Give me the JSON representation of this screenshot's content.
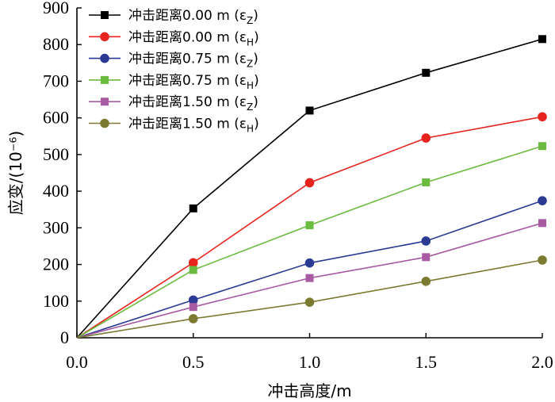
{
  "chart_data": {
    "type": "line",
    "title": "",
    "xlabel": "冲击高度/m",
    "ylabel": "应变/(10⁻⁶)",
    "xlim": [
      0.0,
      2.0
    ],
    "ylim": [
      0,
      900
    ],
    "xticks": [
      0.0,
      0.5,
      1.0,
      1.5,
      2.0
    ],
    "xtick_labels": [
      "0.0",
      "0.5",
      "1.0",
      "1.5",
      "2.0"
    ],
    "yticks": [
      0,
      100,
      200,
      300,
      400,
      500,
      600,
      700,
      800,
      900
    ],
    "ytick_labels": [
      "0",
      "100",
      "200",
      "300",
      "400",
      "500",
      "600",
      "700",
      "800",
      "900"
    ],
    "legend_position": "top-left",
    "x": [
      0.0,
      0.5,
      1.0,
      1.5,
      2.0
    ],
    "series": [
      {
        "name": "冲击距离0.00 m (εZ)",
        "label_main": "冲击距离0.00 m (ε",
        "label_sub": "Z",
        "label_end": ")",
        "color": "#000000",
        "marker": "square",
        "values": [
          0,
          353,
          620,
          723,
          815
        ]
      },
      {
        "name": "冲击距离0.00 m (εH)",
        "label_main": "冲击距离0.00 m (ε",
        "label_sub": "H",
        "label_end": ")",
        "color": "#e8221d",
        "marker": "circle",
        "values": [
          0,
          205,
          423,
          545,
          603
        ]
      },
      {
        "name": "冲击距离0.75 m (εZ)",
        "label_main": "冲击距离0.75 m (ε",
        "label_sub": "Z",
        "label_end": ")",
        "color": "#2b3b93",
        "marker": "circle",
        "values": [
          0,
          103,
          204,
          264,
          374
        ]
      },
      {
        "name": "冲击距离0.75 m (εH)",
        "label_main": "冲击距离0.75 m (ε",
        "label_sub": "H",
        "label_end": ")",
        "color": "#6bbb3e",
        "marker": "square",
        "values": [
          0,
          185,
          307,
          424,
          523
        ]
      },
      {
        "name": "冲击距离1.50 m (εZ)",
        "label_main": "冲击距离1.50 m (ε",
        "label_sub": "Z",
        "label_end": ")",
        "color": "#a85aa3",
        "marker": "square",
        "values": [
          0,
          84,
          163,
          220,
          313
        ]
      },
      {
        "name": "冲击距离1.50 m (εH)",
        "label_main": "冲击距离1.50 m (ε",
        "label_sub": "H",
        "label_end": ")",
        "color": "#7b7a30",
        "marker": "circle",
        "values": [
          0,
          52,
          97,
          154,
          212
        ]
      }
    ]
  }
}
